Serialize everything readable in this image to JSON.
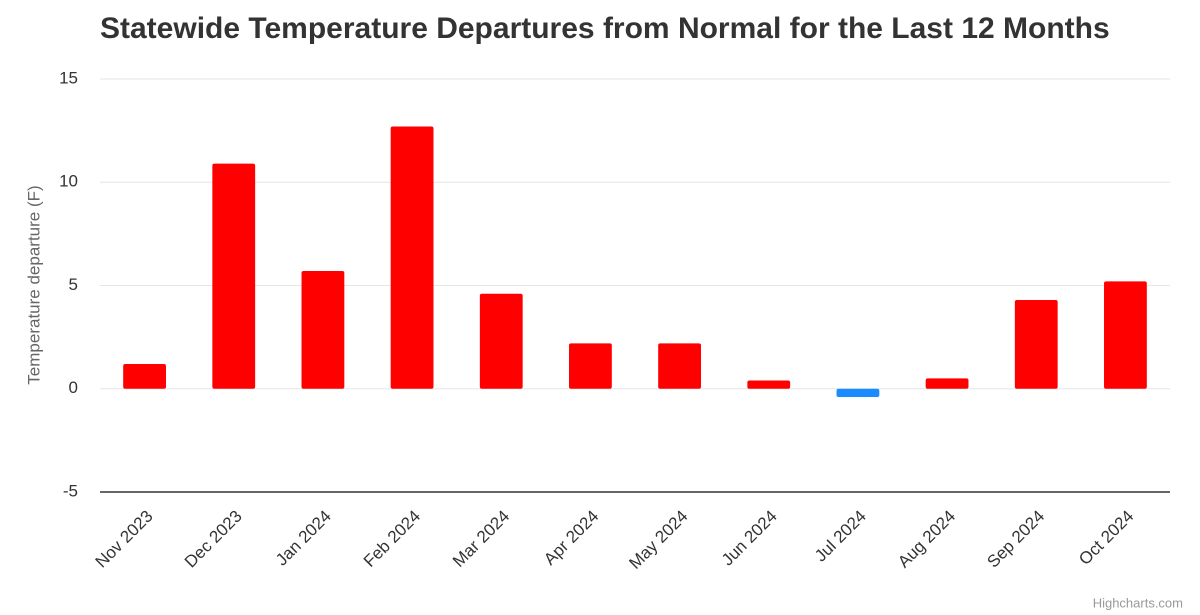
{
  "chart_data": {
    "type": "bar",
    "title": "Statewide Temperature Departures from Normal for the Last 12 Months",
    "y_label": "Temperature departure (F)",
    "credits": "Highcharts.com",
    "categories": [
      "Nov 2023",
      "Dec 2023",
      "Jan 2024",
      "Feb 2024",
      "Mar 2024",
      "Apr 2024",
      "May 2024",
      "Jun 2024",
      "Jul 2024",
      "Aug 2024",
      "Sep 2024",
      "Oct 2024"
    ],
    "values": [
      1.2,
      10.9,
      5.7,
      12.7,
      4.6,
      2.2,
      2.2,
      0.4,
      -0.4,
      0.5,
      4.3,
      5.2
    ],
    "color": "#ff0000",
    "negative_color": "#1a8cff",
    "ylim": [
      -5,
      15
    ],
    "yticks": [
      -5,
      0,
      5,
      10,
      15
    ],
    "grid": true
  }
}
